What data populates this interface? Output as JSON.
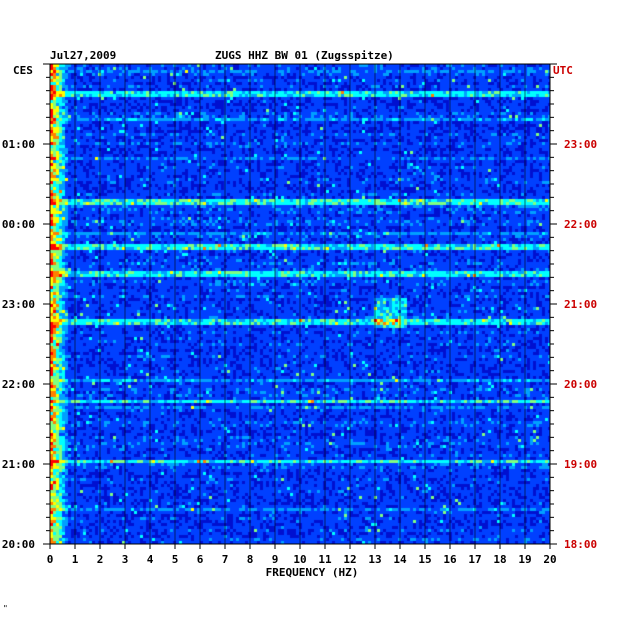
{
  "header": {
    "date": "Jul27,2009",
    "station": "ZUGS HHZ BW 01 (Zugsspitze)",
    "left_tz": "CES",
    "right_tz": "UTC"
  },
  "footer": {
    "corner_mark": "\""
  },
  "colors": {
    "background_blue": "#0000c8",
    "text_black": "#000000",
    "utc_red": "#cc0000",
    "colormap": [
      "#0010d0",
      "#0040ff",
      "#00a0ff",
      "#00ffff",
      "#80ff80",
      "#ffff00",
      "#ff8000",
      "#ff0000"
    ]
  },
  "chart_data": {
    "type": "heatmap",
    "title": "ZUGS HHZ BW 01 (Zugsspitze)",
    "date": "Jul27,2009",
    "xlabel": "FREQUENCY (HZ)",
    "xlim": [
      0,
      20
    ],
    "x_ticks": [
      "0",
      "1",
      "2",
      "3",
      "4",
      "5",
      "6",
      "7",
      "8",
      "9",
      "10",
      "11",
      "12",
      "13",
      "14",
      "15",
      "16",
      "17",
      "18",
      "19",
      "20"
    ],
    "left_axis": {
      "label": "CES",
      "ticks": [
        "01:00",
        "00:00",
        "23:00",
        "22:00",
        "21:00",
        "20:00"
      ],
      "tick_hours_from_top": [
        1,
        2,
        3,
        4,
        5,
        6
      ]
    },
    "right_axis": {
      "label": "UTC",
      "ticks": [
        "23:00",
        "22:00",
        "21:00",
        "20:00",
        "19:00",
        "18:00"
      ],
      "tick_hours_from_top": [
        1,
        2,
        3,
        4,
        5,
        6
      ]
    },
    "time_span_hours": 6,
    "minor_ticks_per_hour": 6,
    "spectral_features": {
      "low_frequency_energy_hz": [
        0,
        0.7
      ],
      "strong_horizontal_events_hours_from_top": [
        0.35,
        1.72,
        2.27,
        2.62,
        3.2,
        4.2,
        4.95
      ],
      "band_14hz_hours_from_top": [
        2.9,
        3.3
      ]
    }
  }
}
